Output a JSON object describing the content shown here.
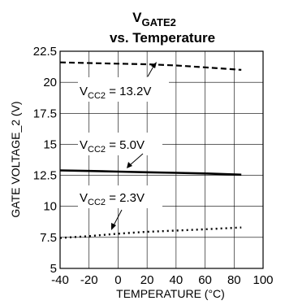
{
  "chart_data": {
    "type": "line",
    "title": {
      "line1_main": "V",
      "line1_sub": "GATE2",
      "line2": "vs. Temperature"
    },
    "xlabel": "TEMPERATURE (°C)",
    "ylabel": "GATE VOLTAGE_2 (V)",
    "xlim": [
      -40,
      100
    ],
    "ylim": [
      5,
      22.5
    ],
    "xticks": [
      -40,
      -20,
      0,
      20,
      40,
      60,
      80,
      100
    ],
    "yticks": [
      5,
      7.5,
      10,
      12.5,
      15,
      17.5,
      20,
      22.5
    ],
    "grid": true,
    "series": [
      {
        "label_main": "V",
        "label_sub": "CC2",
        "label_rest": " = 13.2V",
        "style": "dashed",
        "x": [
          -40,
          -20,
          0,
          20,
          40,
          60,
          85
        ],
        "y": [
          21.6,
          21.55,
          21.5,
          21.45,
          21.35,
          21.2,
          21.0
        ]
      },
      {
        "label_main": "V",
        "label_sub": "CC2",
        "label_rest": " = 5.0V",
        "style": "solid",
        "x": [
          -40,
          -20,
          0,
          20,
          40,
          60,
          85
        ],
        "y": [
          12.9,
          12.85,
          12.8,
          12.75,
          12.7,
          12.65,
          12.55
        ]
      },
      {
        "label_main": "V",
        "label_sub": "CC2",
        "label_rest": " = 2.3V",
        "style": "dotted",
        "x": [
          -40,
          -20,
          0,
          20,
          40,
          60,
          85
        ],
        "y": [
          7.45,
          7.6,
          7.8,
          7.95,
          8.05,
          8.15,
          8.3
        ]
      }
    ]
  }
}
